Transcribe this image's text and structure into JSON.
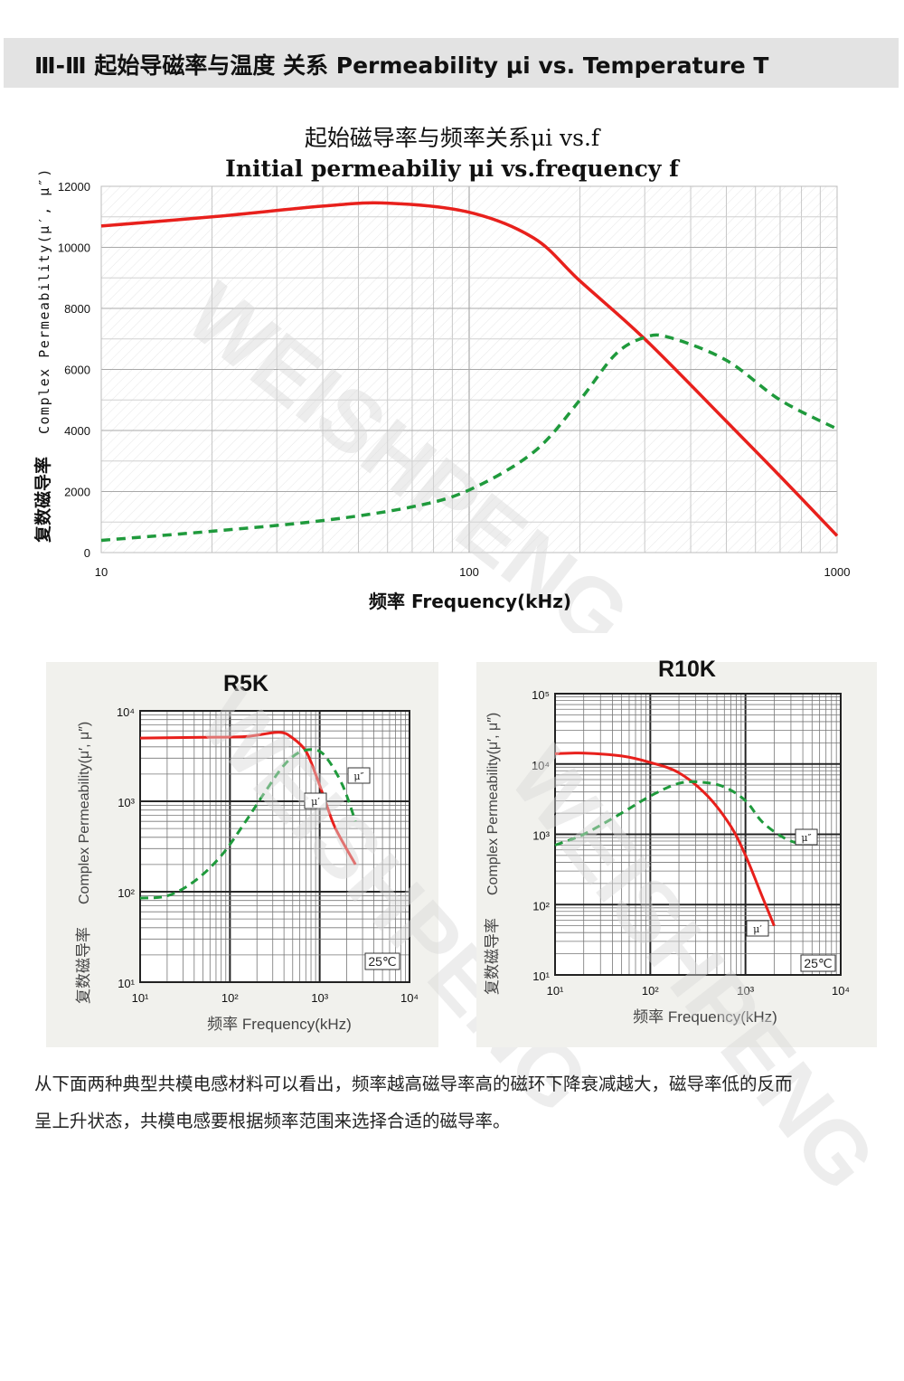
{
  "header": {
    "title": "Ⅲ-Ⅲ 起始导磁率与温度 关系  Permeability μi vs. Temperature T"
  },
  "watermark": "WEISHPENG",
  "main_chart": {
    "title_cn": "起始磁导率与频率关系μi  vs.f",
    "title_en": "Initial permeabiliy  μi vs.frequency f",
    "ylabel_en": "Complex Permeability(μ′, μ″)",
    "ylabel_cn": "复数磁导率",
    "xlabel": "频率 Frequency(kHz)"
  },
  "chart_data": [
    {
      "type": "line",
      "x_scale": "log",
      "xlim": [
        10,
        1000
      ],
      "ylim": [
        0,
        12000
      ],
      "x_ticks": [
        "10",
        "100",
        "1000"
      ],
      "y_ticks": [
        "0",
        "2000",
        "4000",
        "6000",
        "8000",
        "10000",
        "12000"
      ],
      "grid": true,
      "series": [
        {
          "color": "#e8201c",
          "style": "solid",
          "x": [
            10,
            20,
            40,
            60,
            100,
            150,
            200,
            300,
            500,
            700,
            1000
          ],
          "y": [
            10700,
            11000,
            11350,
            11450,
            11150,
            10300,
            8900,
            7000,
            4300,
            2500,
            550
          ]
        },
        {
          "color": "#1f9a3c",
          "style": "dashed",
          "x": [
            10,
            20,
            40,
            70,
            100,
            150,
            200,
            250,
            300,
            350,
            500,
            700,
            1000
          ],
          "y": [
            400,
            700,
            1050,
            1500,
            2050,
            3300,
            5000,
            6500,
            7050,
            7050,
            6300,
            5000,
            4050
          ]
        }
      ]
    },
    {
      "type": "line",
      "title": "R5K",
      "x_scale": "log",
      "y_scale": "log",
      "xlim": [
        10,
        10000
      ],
      "ylim": [
        10,
        10000
      ],
      "x_ticks": [
        "10¹",
        "10²",
        "10³",
        "10⁴"
      ],
      "y_ticks": [
        "10¹",
        "10²",
        "10³",
        "10⁴"
      ],
      "xlabel": "频率 Frequency(kHz)",
      "ylabel_cn": "复数磁导率",
      "ylabel_en": "Complex Permeability(μ′, μ″)",
      "temperature": "25℃",
      "grid": true,
      "series": [
        {
          "name": "μ′",
          "color": "#e8201c",
          "style": "solid",
          "x": [
            10,
            50,
            150,
            350,
            500,
            700,
            900,
            1200,
            1500,
            2500
          ],
          "y": [
            5000,
            5100,
            5200,
            5800,
            5000,
            3600,
            2000,
            900,
            500,
            200
          ]
        },
        {
          "name": "μ″",
          "color": "#1f9a3c",
          "style": "dashed",
          "x": [
            10,
            20,
            40,
            80,
            150,
            250,
            400,
            600,
            900,
            1200,
            1800,
            2500
          ],
          "y": [
            85,
            90,
            130,
            250,
            600,
            1300,
            2500,
            3500,
            3700,
            3000,
            1500,
            600
          ]
        }
      ]
    },
    {
      "type": "line",
      "title": "R10K",
      "x_scale": "log",
      "y_scale": "log",
      "xlim": [
        10,
        10000
      ],
      "ylim": [
        10,
        100000
      ],
      "x_ticks": [
        "10¹",
        "10²",
        "10³",
        "10⁴"
      ],
      "y_ticks": [
        "10¹",
        "10²",
        "10³",
        "10⁴",
        "10⁵"
      ],
      "xlabel": "频率 Frequency(kHz)",
      "ylabel_cn": "复数磁导率",
      "ylabel_en": "Complex Permeability(μ′, μ″)",
      "temperature": "25℃",
      "grid": true,
      "series": [
        {
          "name": "μ′",
          "color": "#e8201c",
          "style": "solid",
          "x": [
            10,
            20,
            50,
            100,
            200,
            400,
            700,
            1000,
            1500,
            2000
          ],
          "y": [
            14000,
            14300,
            13000,
            10500,
            7500,
            3500,
            1300,
            500,
            130,
            50
          ]
        },
        {
          "name": "μ″",
          "color": "#1f9a3c",
          "style": "dashed",
          "x": [
            10,
            20,
            50,
            100,
            200,
            350,
            600,
            1000,
            1500,
            2500,
            4000
          ],
          "y": [
            700,
            1000,
            2000,
            3500,
            5300,
            5500,
            4700,
            3000,
            1500,
            900,
            700
          ]
        }
      ]
    }
  ],
  "paragraph": {
    "line1": "从下面两种典型共模电感材料可以看出，频率越高磁导率高的磁环下降衰减越大，磁导率低的反而",
    "line2": "呈上升状态，共模电感要根据频率范围来选择合适的磁导率。"
  }
}
